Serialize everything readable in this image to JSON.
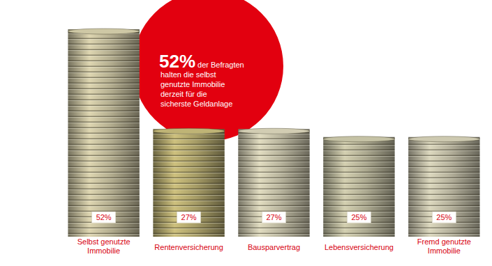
{
  "chart_data": {
    "type": "bar",
    "categories": [
      "Selbst genutzte Immobilie",
      "Rentenversicherung",
      "Bausparvertrag",
      "Lebensversicherung",
      "Fremd genutzte Immobilie"
    ],
    "values": [
      52,
      27,
      27,
      25,
      25
    ],
    "value_labels": [
      "52%",
      "27%",
      "27%",
      "25%",
      "25%"
    ],
    "data_labels": true,
    "tick_labels": "x",
    "colors": [
      "#b3ad8f",
      "#a69c66",
      "#b6b29b",
      "#aba88f",
      "#b2ae99"
    ],
    "annotation": {
      "highlight": "52%",
      "lines": [
        "der Befragten",
        "halten die selbst",
        "genutzte Immobilie",
        "derzeit für die",
        "sicherste Geldanlage"
      ]
    }
  }
}
